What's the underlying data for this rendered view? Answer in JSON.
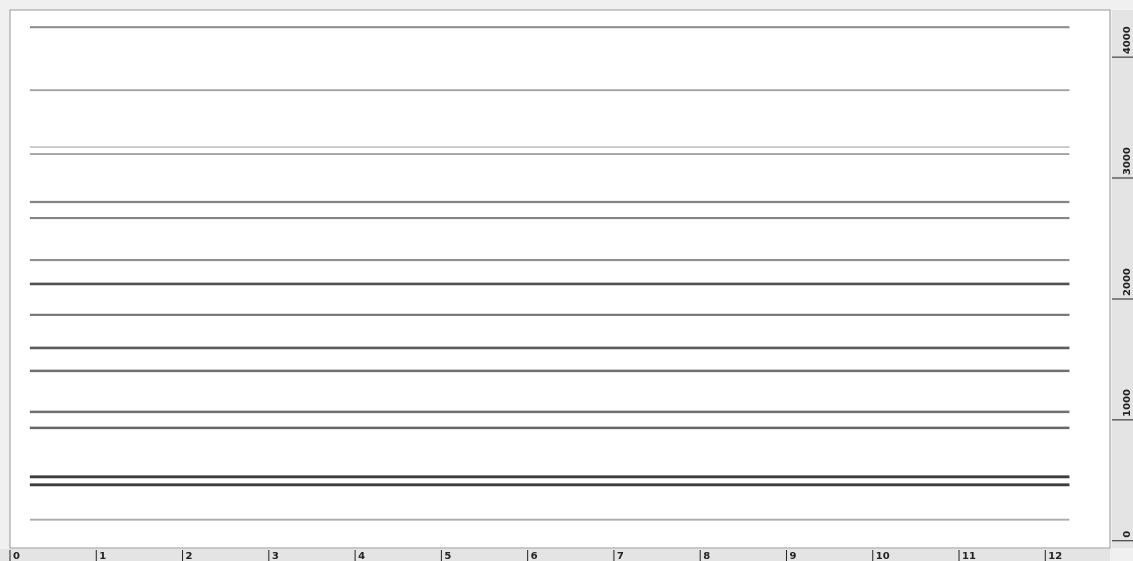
{
  "chart_data": {
    "type": "spectrogram",
    "xlim": [
      0,
      12.75
    ],
    "xticks": [
      0,
      1,
      2,
      3,
      4,
      5,
      6,
      7,
      8,
      9,
      10,
      11,
      12
    ],
    "ylim": [
      -60,
      4390
    ],
    "yticks": [
      0,
      1000,
      2000,
      3000,
      4000
    ],
    "frequencies": [
      4248,
      3727,
      3256,
      3198,
      2802,
      2669,
      2322,
      2124,
      1868,
      1595,
      1405,
      1066,
      934,
      529,
      463,
      174
    ],
    "strength": [
      0.55,
      0.45,
      0.3,
      0.45,
      0.6,
      0.6,
      0.55,
      0.85,
      0.65,
      0.8,
      0.7,
      0.7,
      0.75,
      0.95,
      0.95,
      0.4
    ],
    "start": 0.23,
    "end": 12.28,
    "color": "#333333"
  }
}
